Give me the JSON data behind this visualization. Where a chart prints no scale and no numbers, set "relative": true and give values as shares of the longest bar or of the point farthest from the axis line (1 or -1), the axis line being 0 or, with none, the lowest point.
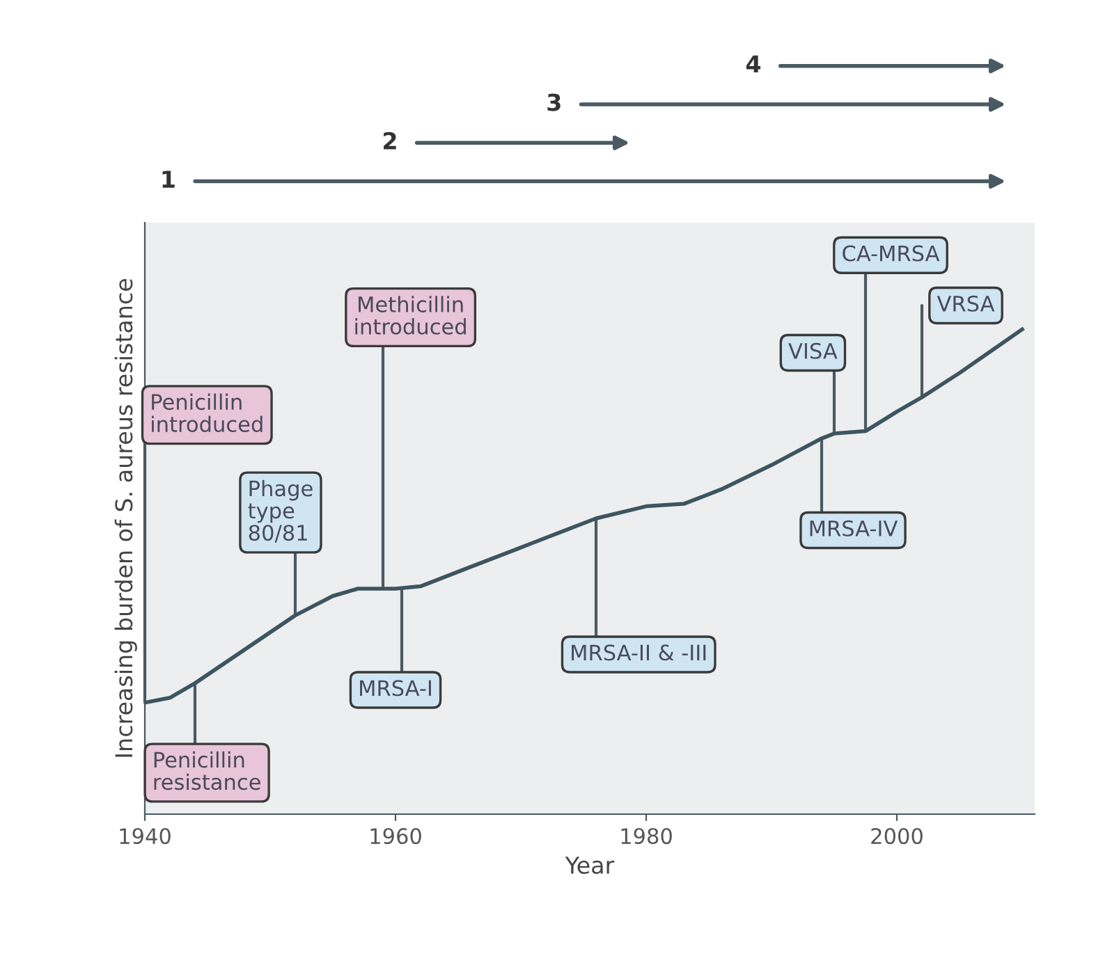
{
  "chart_data": {
    "type": "line",
    "relative": true,
    "xlabel": "Year",
    "ylabel": "Increasing burden of S. aureus resistance",
    "xlim": [
      1940,
      2011
    ],
    "xticks": [
      1940,
      1960,
      1980,
      2000
    ],
    "grid": false,
    "marker": "none",
    "line_style": "solid",
    "x": [
      1940,
      1942,
      1944,
      1948,
      1952,
      1955,
      1957,
      1960,
      1962,
      1966,
      1970,
      1976,
      1980,
      1983,
      1986,
      1990,
      1994,
      1995,
      1997.5,
      2000,
      2002,
      2005,
      2010
    ],
    "series": [
      {
        "color": "#3e5560",
        "values": [
          0.23,
          0.24,
          0.27,
          0.34,
          0.41,
          0.45,
          0.465,
          0.465,
          0.47,
          0.51,
          0.55,
          0.61,
          0.635,
          0.64,
          0.67,
          0.72,
          0.775,
          0.785,
          0.79,
          0.83,
          0.86,
          0.91,
          1.0
        ]
      }
    ],
    "annotations": [
      {
        "text": "Penicillin\nintroduced",
        "x": 1940,
        "y": 0.23
      },
      {
        "text": "Penicillin\nresistance",
        "x": 1944,
        "y": 0.27
      },
      {
        "text": "Phage\ntype\n80/81",
        "x": 1952,
        "y": 0.41
      },
      {
        "text": "Methicillin\nintroduced",
        "x": 1959,
        "y": 0.465
      },
      {
        "text": "MRSA-I",
        "x": 1960.5,
        "y": 0.466
      },
      {
        "text": "MRSA-II & -III",
        "x": 1976,
        "y": 0.61
      },
      {
        "text": "VISA",
        "x": 1995,
        "y": 0.785
      },
      {
        "text": "CA-MRSA",
        "x": 1997.5,
        "y": 0.79
      },
      {
        "text": "MRSA-IV",
        "x": 1994,
        "y": 0.775
      },
      {
        "text": "VRSA",
        "x": 2002,
        "y": 0.86
      },
      "1",
      "2",
      "3",
      "4"
    ]
  }
}
